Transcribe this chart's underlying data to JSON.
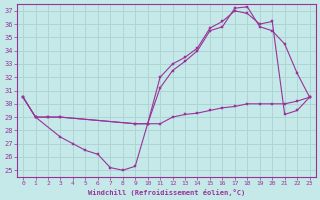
{
  "xlabel": "Windchill (Refroidissement éolien,°C)",
  "xlim_min": -0.5,
  "xlim_max": 23.5,
  "ylim_min": 24.5,
  "ylim_max": 37.5,
  "yticks": [
    25,
    26,
    27,
    28,
    29,
    30,
    31,
    32,
    33,
    34,
    35,
    36,
    37
  ],
  "xticks": [
    0,
    1,
    2,
    3,
    4,
    5,
    6,
    7,
    8,
    9,
    10,
    11,
    12,
    13,
    14,
    15,
    16,
    17,
    18,
    19,
    20,
    21,
    22,
    23
  ],
  "background_color": "#c5e8e8",
  "line_color": "#993399",
  "grid_color": "#aed4d4",
  "line1_x": [
    0,
    1,
    2,
    3,
    9,
    10,
    11,
    12,
    13,
    14,
    15,
    16,
    17,
    18,
    19,
    20,
    21,
    22,
    23
  ],
  "line1_y": [
    30.5,
    29.0,
    29.0,
    29.0,
    28.5,
    28.5,
    32.0,
    33.0,
    33.5,
    34.2,
    35.7,
    36.2,
    37.0,
    36.8,
    36.0,
    36.2,
    29.2,
    29.5,
    30.5
  ],
  "line2_x": [
    0,
    1,
    2,
    3,
    9,
    10,
    11,
    12,
    13,
    14,
    15,
    16,
    17,
    18,
    19,
    20,
    21,
    22,
    23
  ],
  "line2_y": [
    30.5,
    29.0,
    29.0,
    29.0,
    28.5,
    28.5,
    31.2,
    32.5,
    33.2,
    34.0,
    35.5,
    35.8,
    37.2,
    37.3,
    35.8,
    35.5,
    34.5,
    32.3,
    30.5
  ],
  "line3_x": [
    0,
    1,
    3,
    4,
    5,
    6,
    7,
    8,
    9,
    10,
    11,
    12,
    13,
    14,
    15,
    16,
    17,
    18,
    19,
    20,
    21,
    22,
    23
  ],
  "line3_y": [
    30.5,
    29.0,
    27.5,
    27.0,
    26.5,
    26.2,
    25.2,
    25.0,
    25.3,
    28.5,
    28.5,
    29.0,
    29.2,
    29.3,
    29.5,
    29.7,
    29.8,
    30.0,
    30.0,
    30.0,
    30.0,
    30.2,
    30.5
  ]
}
